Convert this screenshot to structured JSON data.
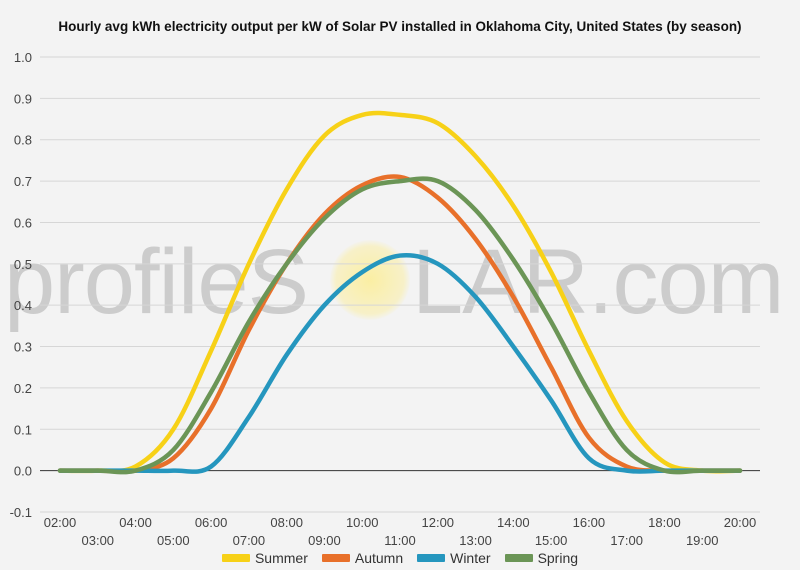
{
  "chart_data": {
    "type": "line",
    "title": "Hourly avg kWh electricity output per kW of Solar PV installed in Oklahoma City, United States (by season)",
    "xlabel": "",
    "ylabel": "",
    "ylim": [
      -0.1,
      1.0
    ],
    "y_ticks": [
      "1.0",
      "0.9",
      "0.8",
      "0.7",
      "0.6",
      "0.5",
      "0.4",
      "0.3",
      "0.2",
      "0.1",
      "0.0",
      "-0.1"
    ],
    "x_ticks_upper": [
      "02:00",
      "04:00",
      "06:00",
      "08:00",
      "10:00",
      "12:00",
      "14:00",
      "16:00",
      "18:00",
      "20:00"
    ],
    "x_ticks_lower": [
      "03:00",
      "05:00",
      "07:00",
      "09:00",
      "11:00",
      "13:00",
      "15:00",
      "17:00",
      "19:00"
    ],
    "x": [
      "02:00",
      "03:00",
      "04:00",
      "05:00",
      "06:00",
      "07:00",
      "08:00",
      "09:00",
      "10:00",
      "11:00",
      "12:00",
      "13:00",
      "14:00",
      "15:00",
      "16:00",
      "17:00",
      "18:00",
      "19:00",
      "20:00"
    ],
    "grid": true,
    "legend_position": "bottom",
    "series": [
      {
        "name": "Summer",
        "color": "#f7d117",
        "values": [
          0,
          0,
          0.01,
          0.1,
          0.29,
          0.5,
          0.68,
          0.81,
          0.86,
          0.86,
          0.84,
          0.76,
          0.64,
          0.48,
          0.29,
          0.12,
          0.02,
          0,
          0
        ]
      },
      {
        "name": "Autumn",
        "color": "#e8702a",
        "values": [
          0,
          0,
          0,
          0.03,
          0.15,
          0.34,
          0.5,
          0.62,
          0.69,
          0.71,
          0.66,
          0.56,
          0.42,
          0.25,
          0.08,
          0.01,
          0,
          0,
          0
        ]
      },
      {
        "name": "Winter",
        "color": "#2596be",
        "values": [
          0,
          0,
          0,
          0,
          0.01,
          0.13,
          0.28,
          0.4,
          0.48,
          0.52,
          0.5,
          0.42,
          0.3,
          0.17,
          0.03,
          0,
          0,
          0,
          0
        ]
      },
      {
        "name": "Spring",
        "color": "#6b9556",
        "values": [
          0,
          0,
          0,
          0.05,
          0.19,
          0.36,
          0.5,
          0.61,
          0.68,
          0.7,
          0.7,
          0.63,
          0.51,
          0.36,
          0.19,
          0.05,
          0,
          0,
          0
        ]
      }
    ]
  },
  "watermark": {
    "left": "profileS",
    "right": "LAR.com"
  }
}
